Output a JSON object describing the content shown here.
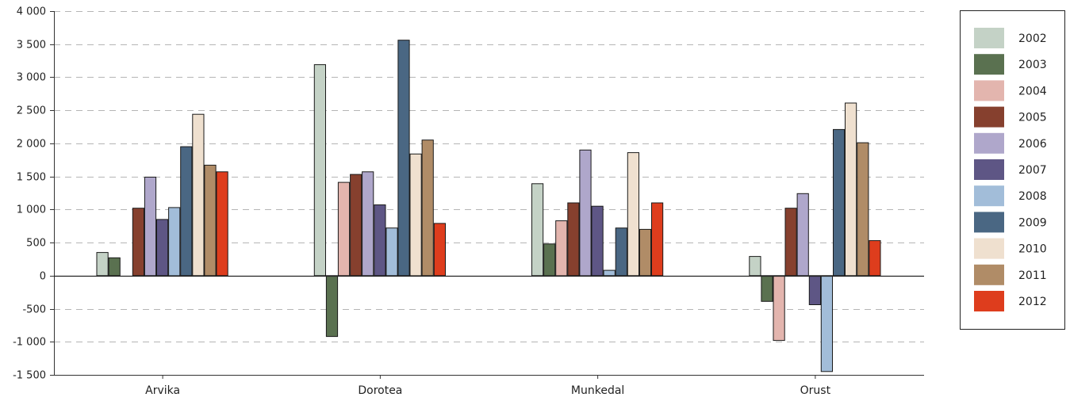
{
  "chart_data": {
    "type": "bar",
    "categories": [
      "Arvika",
      "Dorotea",
      "Munkedal",
      "Orust"
    ],
    "series": [
      {
        "name": "2002",
        "color": "#c4d2c6",
        "values": [
          350,
          3190,
          1390,
          290
        ]
      },
      {
        "name": "2003",
        "color": "#5a7150",
        "values": [
          270,
          -920,
          480,
          -390
        ]
      },
      {
        "name": "2004",
        "color": "#e3b5ae",
        "values": [
          0,
          1410,
          830,
          -980
        ]
      },
      {
        "name": "2005",
        "color": "#86402e",
        "values": [
          1020,
          1530,
          1100,
          1020
        ]
      },
      {
        "name": "2006",
        "color": "#afa7cb",
        "values": [
          1490,
          1570,
          1900,
          1240
        ]
      },
      {
        "name": "2007",
        "color": "#5e5685",
        "values": [
          850,
          1070,
          1050,
          -440
        ]
      },
      {
        "name": "2008",
        "color": "#a2bdd9",
        "values": [
          1030,
          720,
          80,
          -1450
        ]
      },
      {
        "name": "2009",
        "color": "#4a6783",
        "values": [
          1950,
          3560,
          720,
          2210
        ]
      },
      {
        "name": "2010",
        "color": "#efe0cf",
        "values": [
          2440,
          1840,
          1860,
          2610
        ]
      },
      {
        "name": "2011",
        "color": "#b08c67",
        "values": [
          1670,
          2050,
          700,
          2010
        ]
      },
      {
        "name": "2012",
        "color": "#de3d1d",
        "values": [
          1570,
          790,
          1100,
          530
        ]
      }
    ],
    "ylim": [
      -1500,
      4000
    ],
    "yticks": [
      "4 000",
      "3 500",
      "3 000",
      "2 500",
      "2 000",
      "1 500",
      "1 000",
      "500",
      "0",
      "-500",
      "-1 000",
      "-1 500"
    ],
    "ytick_values": [
      4000,
      3500,
      3000,
      2500,
      2000,
      1500,
      1000,
      500,
      0,
      -500,
      -1000,
      -1500
    ],
    "grid": true,
    "legend_position": "right"
  }
}
